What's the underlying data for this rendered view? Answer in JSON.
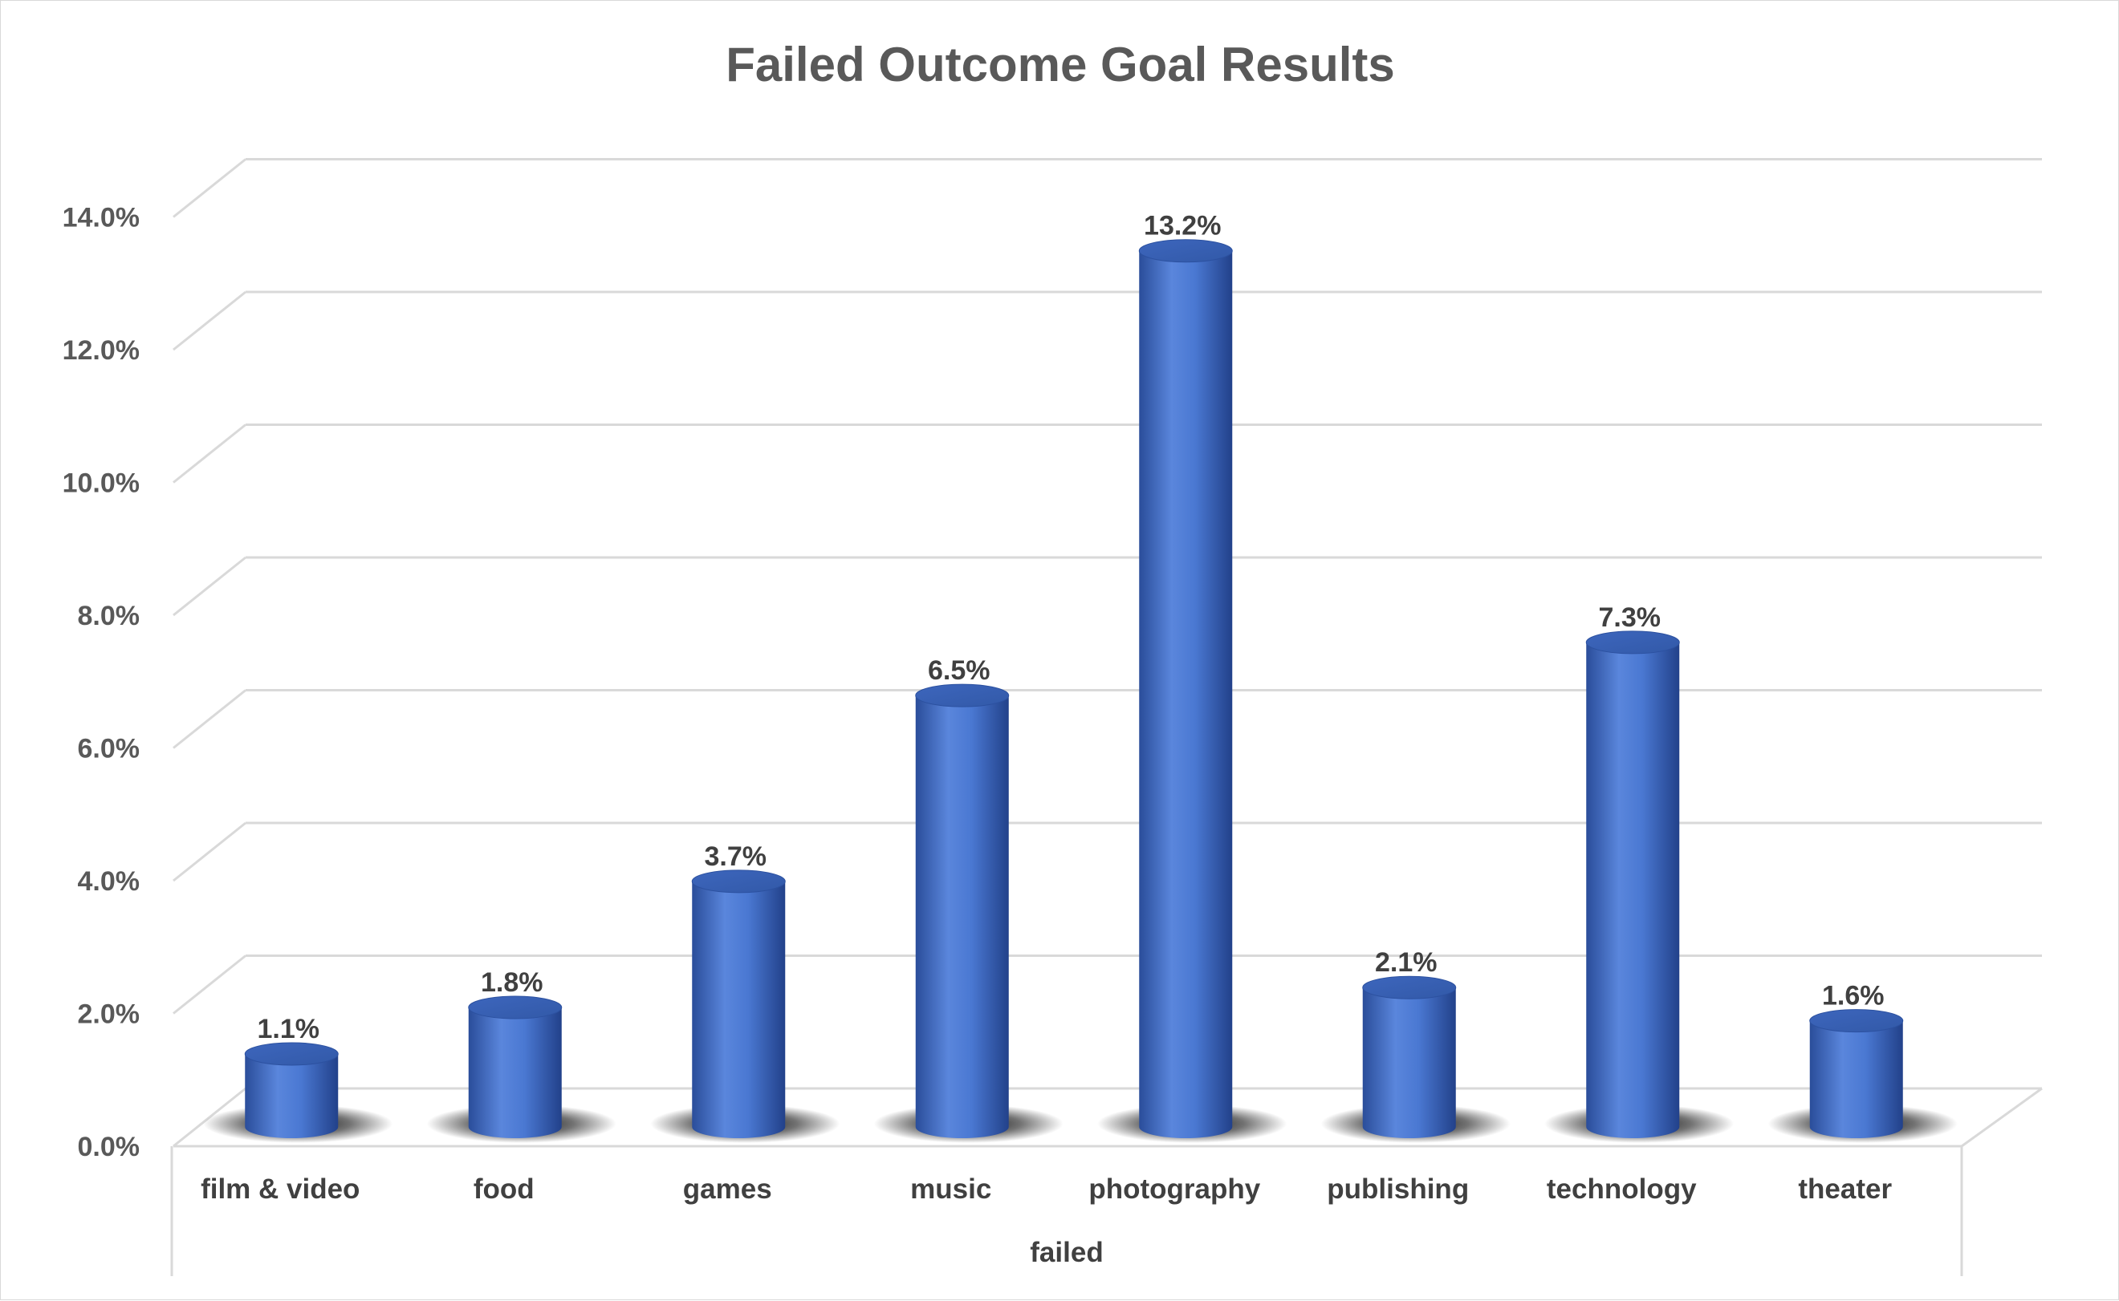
{
  "chart_data": {
    "type": "bar",
    "style": "3d-cylinder",
    "title": "Failed Outcome Goal Results",
    "categories": [
      "film & video",
      "food",
      "games",
      "music",
      "photography",
      "publishing",
      "technology",
      "theater"
    ],
    "values": [
      1.1,
      1.8,
      3.7,
      6.5,
      13.2,
      2.1,
      7.3,
      1.6
    ],
    "data_labels": [
      "1.1%",
      "1.8%",
      "3.7%",
      "6.5%",
      "13.2%",
      "2.1%",
      "7.3%",
      "1.6%"
    ],
    "y_ticks": [
      "0.0%",
      "2.0%",
      "4.0%",
      "6.0%",
      "8.0%",
      "10.0%",
      "12.0%",
      "14.0%"
    ],
    "ylim": [
      0,
      14
    ],
    "xlabel": "failed",
    "ylabel": "",
    "grid": true,
    "legend": "none",
    "colors": {
      "bar": "#4472c4",
      "bar_light": "#6f94e0",
      "bar_dark": "#2a4d9a",
      "grid": "#d9d9d9",
      "text": "#595959"
    }
  }
}
